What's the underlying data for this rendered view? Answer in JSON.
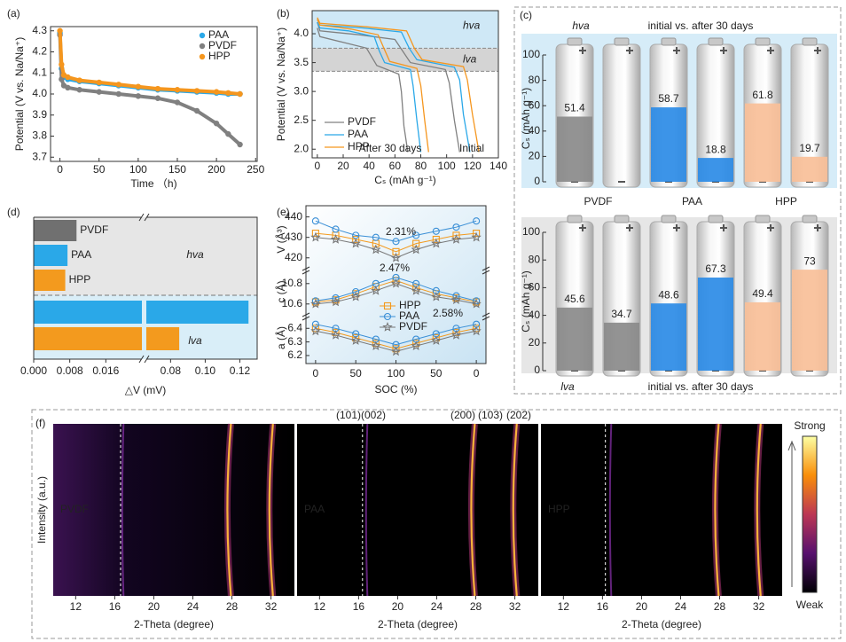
{
  "chart_data": [
    {
      "type": "line",
      "panel": "(a)",
      "xlabel": "Time （h)",
      "ylabel": "Potential (V vs. Na/Na⁺)",
      "xlim": [
        -12,
        252
      ],
      "xticks": [
        0,
        50,
        100,
        150,
        200,
        250
      ],
      "ylim": [
        3.68,
        4.32
      ],
      "yticks": [
        3.7,
        3.8,
        3.9,
        {
          "value": 4,
          "label": "4.0"
        },
        4.1,
        4.2,
        4.3
      ],
      "legend": "upper right",
      "x": [
        0,
        2,
        5,
        10,
        25,
        50,
        75,
        100,
        125,
        150,
        175,
        200,
        215,
        230
      ],
      "series": [
        {
          "name": "PAA",
          "color": "#2aa8e8",
          "values": [
            4.29,
            4.12,
            4.08,
            4.07,
            4.06,
            4.05,
            4.04,
            4.03,
            4.02,
            4.015,
            4.01,
            4.005,
            4.0,
            4.0
          ]
        },
        {
          "name": "PVDF",
          "color": "#808080",
          "values": [
            4.28,
            4.07,
            4.04,
            4.03,
            4.02,
            4.01,
            4.0,
            3.99,
            3.98,
            3.96,
            3.92,
            3.86,
            3.81,
            3.76
          ]
        },
        {
          "name": "HPP",
          "color": "#f5961e",
          "values": [
            4.3,
            4.14,
            4.09,
            4.08,
            4.065,
            4.055,
            4.045,
            4.035,
            4.025,
            4.02,
            4.015,
            4.01,
            4.005,
            4.0
          ]
        }
      ]
    },
    {
      "type": "line",
      "panel": "(b)",
      "xlabel": "Cₛ (mAh g⁻¹)",
      "ylabel": "Potential (V vs. Na/Na⁺)",
      "xlim": [
        -4,
        140
      ],
      "xticks": [
        0,
        20,
        40,
        60,
        80,
        100,
        120,
        140
      ],
      "ylim": [
        1.85,
        4.4
      ],
      "yticks": [
        {
          "value": 2,
          "label": "2.0"
        },
        2.5,
        {
          "value": 3,
          "label": "3.0"
        },
        3.5,
        {
          "value": 4,
          "label": "4.0"
        }
      ],
      "legend": "lower left",
      "bands": [
        {
          "label": "hva",
          "range": [
            3.75,
            4.4
          ],
          "color": "#cfe8f6"
        },
        {
          "label": "lva",
          "range": [
            3.35,
            3.75
          ],
          "color": "#d4d4d4"
        }
      ],
      "annotations": [
        "After 30 days",
        "Initial"
      ],
      "series": [
        {
          "name": "PVDF",
          "color": "#808080",
          "initial": {
            "x": [
              0,
              2,
              33,
              60,
              66,
              72,
              99,
              102,
              106,
              110
            ],
            "values": [
              4.2,
              4.05,
              3.98,
              3.9,
              3.7,
              3.5,
              3.38,
              3.15,
              2.5,
              1.95
            ]
          },
          "after_30_days": {
            "x": [
              0,
              2,
              20,
              38,
              42,
              46,
              63,
              65,
              67,
              70
            ],
            "values": [
              4.1,
              3.95,
              3.85,
              3.75,
              3.6,
              3.45,
              3.3,
              3.0,
              2.4,
              1.95
            ]
          }
        },
        {
          "name": "PAA",
          "color": "#2aa8e8",
          "initial": {
            "x": [
              0,
              2,
              35,
              65,
              71,
              77,
              106,
              110,
              113,
              118
            ],
            "values": [
              4.25,
              4.15,
              4.1,
              4.03,
              3.75,
              3.55,
              3.42,
              3.2,
              2.6,
              1.95
            ]
          },
          "after_30_days": {
            "x": [
              0,
              2,
              24,
              44,
              48,
              52,
              72,
              74,
              77,
              80
            ],
            "values": [
              4.2,
              4.1,
              4.05,
              3.95,
              3.7,
              3.5,
              3.38,
              3.1,
              2.5,
              1.95
            ]
          }
        },
        {
          "name": "HPP",
          "color": "#f5961e",
          "initial": {
            "x": [
              0,
              2,
              38,
              69,
              75,
              81,
              113,
              116,
              120,
              125
            ],
            "values": [
              4.28,
              4.18,
              4.12,
              4.05,
              3.75,
              3.55,
              3.43,
              3.2,
              2.6,
              1.95
            ]
          },
          "after_30_days": {
            "x": [
              0,
              2,
              26,
              47,
              52,
              56,
              77,
              80,
              83,
              86
            ],
            "values": [
              4.25,
              4.15,
              4.08,
              3.98,
              3.72,
              3.52,
              3.4,
              3.1,
              2.5,
              1.95
            ]
          }
        }
      ]
    },
    {
      "type": "battery_bar",
      "panel": "(c)",
      "ylabel": "Cₛ (mAh g⁻¹)",
      "caption": "initial vs. after 30 days",
      "ylim": [
        0,
        100
      ],
      "yticks": [
        0,
        20,
        40,
        60,
        80,
        100
      ],
      "categories": [
        "PVDF",
        "PAA",
        "HPP"
      ],
      "colors": [
        "#8a8a8a",
        "#2b8be6",
        "#f9bf98"
      ],
      "label_colors": [
        "#8a8a8a",
        "#1e90e0",
        "#f08c2a"
      ],
      "panels": [
        {
          "label": "hva",
          "initial": [
            51.4,
            58.7,
            61.8
          ],
          "after_30_days": [
            null,
            18.8,
            19.7
          ]
        },
        {
          "label": "lva",
          "initial": [
            45.6,
            48.6,
            49.4
          ],
          "after_30_days": [
            34.7,
            67.3,
            73
          ]
        }
      ]
    },
    {
      "type": "broken_hbar",
      "panel": "(d)",
      "xlabel": "△V (mV)",
      "xlim": [
        0,
        0.13
      ],
      "xbreak": [
        0.024,
        0.066
      ],
      "xticks": [
        {
          "value": 0,
          "label": "0.000"
        },
        0.008,
        0.016,
        0.08,
        {
          "value": 0.1,
          "label": "0.10"
        },
        0.12
      ],
      "categories": [
        "PVDF",
        "PAA",
        "HPP"
      ],
      "colors": [
        "#707070",
        "#2aa8e8",
        "#f39a1e"
      ],
      "groups": [
        {
          "label": "hva",
          "values": [
            0.0095,
            0.0075,
            0.007
          ]
        },
        {
          "label": "lva",
          "values": [
            null,
            0.125,
            0.085
          ]
        }
      ]
    },
    {
      "type": "stacked_line",
      "panel": "(e)",
      "xlabel": "SOC (%)",
      "xlim": [
        -12,
        212
      ],
      "xticks": [
        0,
        50,
        100,
        {
          "value": 150,
          "label": "50"
        },
        {
          "value": 200,
          "label": "0"
        }
      ],
      "x": [
        0,
        25,
        50,
        75,
        100,
        125,
        150,
        175,
        200
      ],
      "annotations": [
        {
          "text": "2.31%",
          "color": "#f39a1e"
        },
        {
          "text": "2.47%",
          "color": "#2a8fd8"
        },
        {
          "text": "2.58%",
          "color": "#777777"
        }
      ],
      "series_style": [
        {
          "name": "HPP",
          "color": "#f39a1e",
          "marker": "square"
        },
        {
          "name": "PAA",
          "color": "#3a8fd6",
          "marker": "circle"
        },
        {
          "name": "PVDF",
          "color": "#777777",
          "marker": "star"
        }
      ],
      "subplots": [
        {
          "ylabel": "V (Å³)",
          "ylim": [
            416,
            442
          ],
          "yticks": [
            420,
            430,
            440
          ],
          "values": [
            [
              432,
              431,
              429,
              427,
              423,
              427,
              429,
              431,
              432
            ],
            [
              438,
              434,
              431,
              430,
              428,
              431,
              433,
              435,
              438
            ],
            [
              430,
              429,
              427,
              424,
              420,
              424,
              427,
              429,
              430
            ]
          ]
        },
        {
          "ylabel": "c (Å)",
          "ylim": [
            10.52,
            10.92
          ],
          "yticks": [
            10.6,
            10.8
          ],
          "values": [
            [
              10.62,
              10.64,
              10.7,
              10.77,
              10.83,
              10.76,
              10.7,
              10.66,
              10.62
            ],
            [
              10.63,
              10.66,
              10.72,
              10.8,
              10.86,
              10.8,
              10.73,
              10.68,
              10.63
            ],
            [
              10.6,
              10.62,
              10.67,
              10.73,
              10.8,
              10.73,
              10.67,
              10.64,
              10.6
            ]
          ]
        },
        {
          "ylabel": "a (Å)",
          "ylim": [
            6.18,
            6.48
          ],
          "yticks": [
            6.2,
            6.3,
            6.4
          ],
          "values": [
            [
              6.4,
              6.37,
              6.33,
              6.29,
              6.25,
              6.29,
              6.33,
              6.37,
              6.4
            ],
            [
              6.43,
              6.4,
              6.36,
              6.32,
              6.28,
              6.32,
              6.36,
              6.4,
              6.43
            ],
            [
              6.38,
              6.35,
              6.31,
              6.27,
              6.23,
              6.27,
              6.31,
              6.35,
              6.38
            ]
          ]
        }
      ]
    },
    {
      "type": "xrd_map",
      "panel": "(f)",
      "xlabel": "2-Theta (degree)",
      "ylabel": "Intensity (a.u.)",
      "xlim": [
        9.7,
        34.4
      ],
      "xticks": [
        12,
        16,
        20,
        24,
        28,
        32
      ],
      "peak_labels": [
        "(101)",
        "(002)",
        "(200)",
        "(103)",
        "(202)"
      ],
      "colorbar": [
        "Strong",
        "Weak"
      ],
      "maps": [
        {
          "label": "PVDF",
          "reference": 16.6,
          "peaks": [
            27.9,
            32.2
          ],
          "weak_peaks": [
            16.9
          ]
        },
        {
          "label": "PAA",
          "reference": 16.4,
          "peaks": [
            27.9,
            32.2
          ],
          "weak_peaks": [
            16.9
          ]
        },
        {
          "label": "HPP",
          "reference": 16.3,
          "peaks": [
            27.9,
            32.2
          ],
          "weak_peaks": [
            16.9
          ]
        }
      ]
    }
  ]
}
